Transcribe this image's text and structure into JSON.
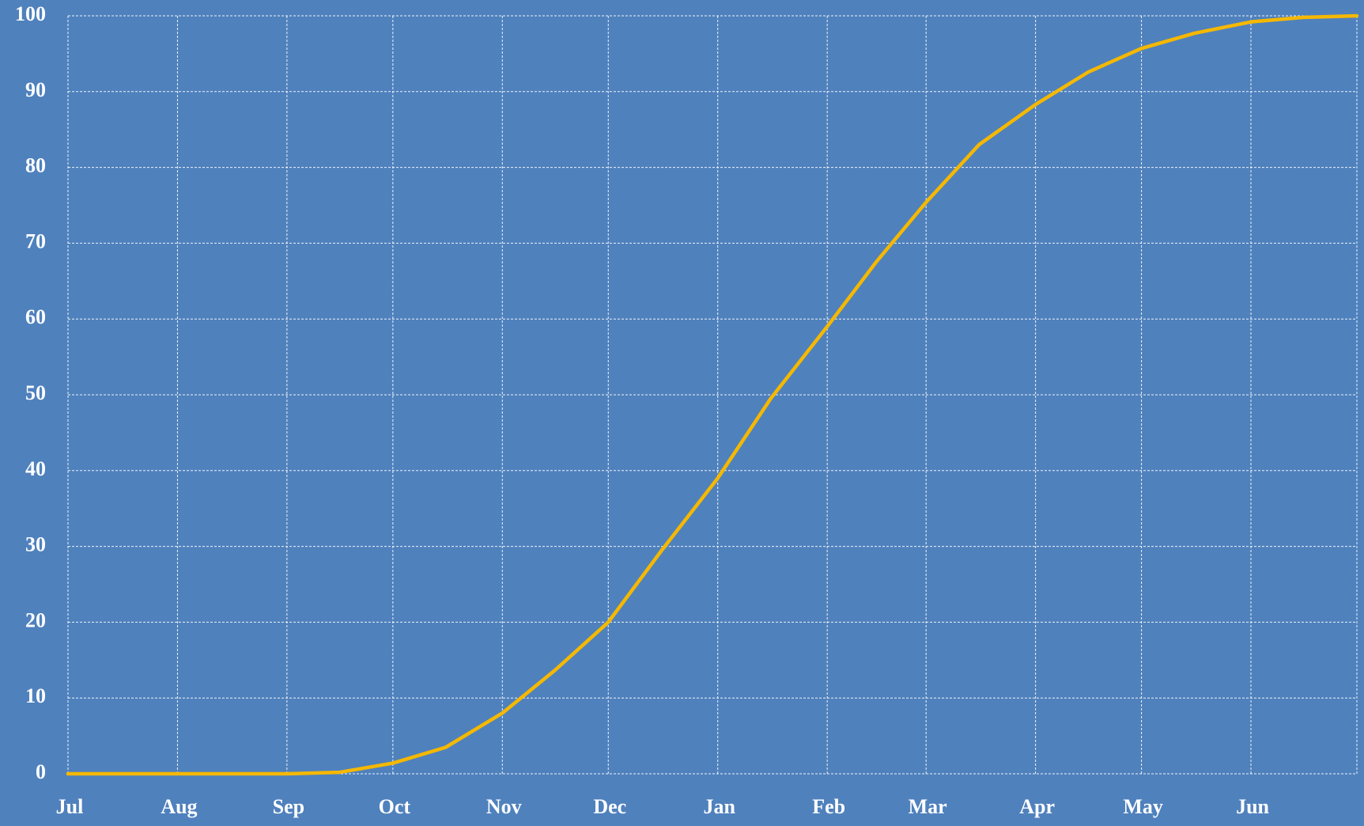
{
  "chart_data": {
    "type": "line",
    "x": [
      0,
      31,
      62,
      77,
      92,
      107,
      123,
      138,
      153,
      168,
      184,
      199,
      215,
      229,
      243,
      258,
      274,
      289,
      304,
      319,
      335,
      350,
      365
    ],
    "values": [
      0,
      0,
      0,
      0.2,
      1.4,
      3.5,
      8,
      13.7,
      20,
      29.4,
      39,
      49.5,
      59,
      67.6,
      75.4,
      83,
      88.3,
      92.6,
      95.7,
      97.7,
      99.2,
      99.8,
      100
    ],
    "color": "#f5b800",
    "xlim": [
      0,
      365
    ],
    "xticks": [
      {
        "value": 0,
        "label": "Jul"
      },
      {
        "value": 31,
        "label": "Aug"
      },
      {
        "value": 62,
        "label": "Sep"
      },
      {
        "value": 92,
        "label": "Oct"
      },
      {
        "value": 123,
        "label": "Nov"
      },
      {
        "value": 153,
        "label": "Dec"
      },
      {
        "value": 184,
        "label": "Jan"
      },
      {
        "value": 215,
        "label": "Feb"
      },
      {
        "value": 243,
        "label": "Mar"
      },
      {
        "value": 274,
        "label": "Apr"
      },
      {
        "value": 304,
        "label": "May"
      },
      {
        "value": 335,
        "label": "Jun"
      }
    ],
    "ylim": [
      0,
      100
    ],
    "yticks": [
      0,
      10,
      20,
      30,
      40,
      50,
      60,
      70,
      80,
      90,
      100
    ],
    "grid": true
  }
}
